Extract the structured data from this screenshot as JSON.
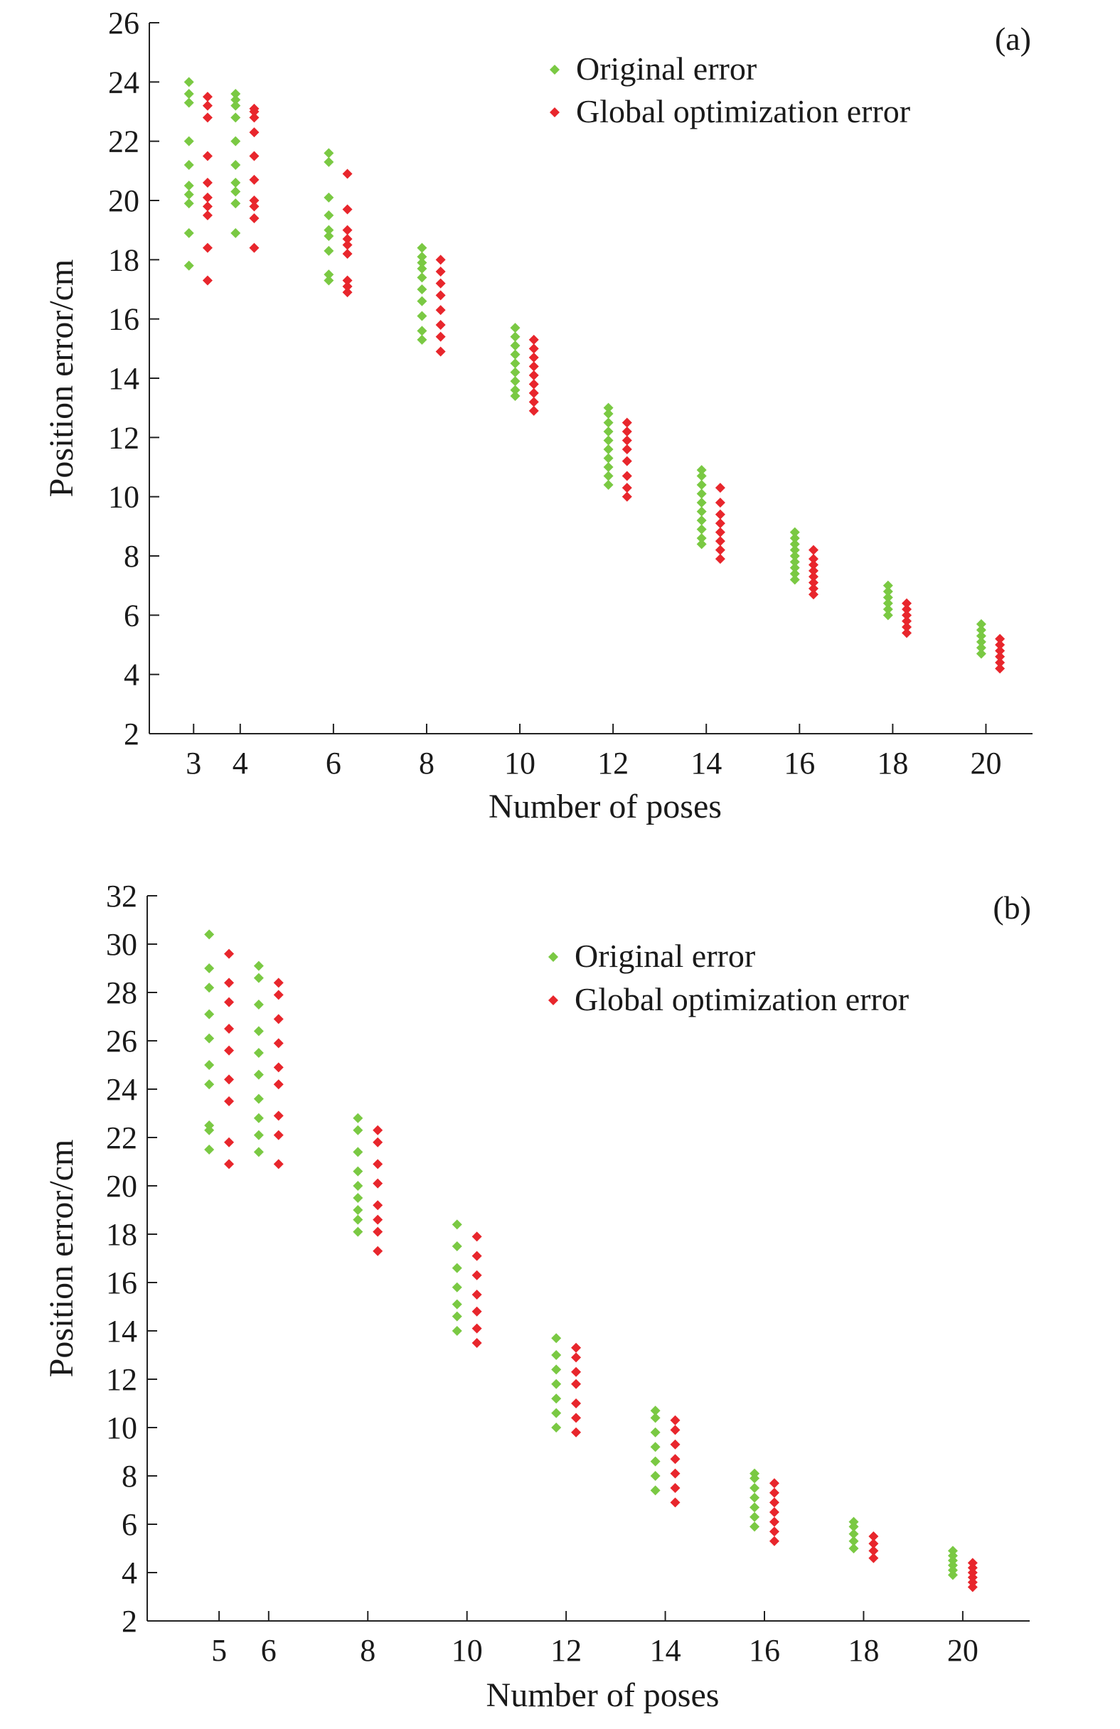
{
  "colors": {
    "original": "#7ac943",
    "optimized": "#e8262c"
  },
  "chart_data": [
    {
      "type": "scatter",
      "panel_label": "(a)",
      "xlabel": "Number of poses",
      "ylabel": "Position error/cm",
      "ylim": [
        2,
        26
      ],
      "yticks": [
        2,
        4,
        6,
        8,
        10,
        12,
        14,
        16,
        18,
        20,
        22,
        24,
        26
      ],
      "xlim": [
        2.05,
        21
      ],
      "xticks": [
        3,
        4,
        6,
        8,
        10,
        12,
        14,
        16,
        18,
        20
      ],
      "legend_position": "top-right",
      "series": [
        {
          "name": "Original error",
          "x": [
            2.9,
            3.9,
            5.9,
            7.9,
            9.9,
            11.9,
            13.9,
            15.9,
            17.9,
            19.9
          ],
          "values": [
            [
              17.8,
              18.9,
              19.9,
              20.2,
              20.5,
              21.2,
              22.0,
              23.3,
              23.6,
              24.0
            ],
            [
              18.9,
              19.9,
              20.3,
              20.6,
              21.2,
              22.0,
              22.8,
              23.2,
              23.4,
              23.6
            ],
            [
              17.3,
              17.5,
              18.3,
              18.8,
              19.0,
              19.5,
              20.1,
              21.3,
              21.6
            ],
            [
              15.3,
              15.6,
              16.1,
              16.6,
              17.0,
              17.4,
              17.7,
              17.9,
              18.1,
              18.4
            ],
            [
              13.4,
              13.6,
              13.9,
              14.2,
              14.5,
              14.8,
              15.1,
              15.4,
              15.7
            ],
            [
              10.4,
              10.7,
              11.0,
              11.3,
              11.6,
              11.9,
              12.2,
              12.5,
              12.8,
              13.0
            ],
            [
              8.4,
              8.6,
              8.9,
              9.2,
              9.5,
              9.8,
              10.1,
              10.4,
              10.7,
              10.9
            ],
            [
              7.2,
              7.4,
              7.6,
              7.8,
              8.0,
              8.2,
              8.4,
              8.6,
              8.8
            ],
            [
              6.0,
              6.2,
              6.4,
              6.6,
              6.8,
              7.0
            ],
            [
              4.7,
              4.9,
              5.1,
              5.3,
              5.5,
              5.7
            ]
          ]
        },
        {
          "name": "Global optimization error",
          "x": [
            3.3,
            4.3,
            6.3,
            8.3,
            10.3,
            12.3,
            14.3,
            16.3,
            18.3,
            20.3
          ],
          "values": [
            [
              17.3,
              18.4,
              19.5,
              19.8,
              20.1,
              20.6,
              21.5,
              22.8,
              23.2,
              23.5
            ],
            [
              18.4,
              19.4,
              19.8,
              20.0,
              20.7,
              21.5,
              22.3,
              22.8,
              23.0,
              23.1
            ],
            [
              16.9,
              17.1,
              17.3,
              18.2,
              18.5,
              18.7,
              19.0,
              19.7,
              20.9
            ],
            [
              14.9,
              15.4,
              15.8,
              16.3,
              16.8,
              17.2,
              17.6,
              18.0
            ],
            [
              12.9,
              13.2,
              13.5,
              13.8,
              14.1,
              14.4,
              14.7,
              15.0,
              15.3
            ],
            [
              10.0,
              10.3,
              10.7,
              11.2,
              11.6,
              11.9,
              12.2,
              12.5
            ],
            [
              7.9,
              8.2,
              8.5,
              8.8,
              9.1,
              9.4,
              9.8,
              10.3
            ],
            [
              6.7,
              6.9,
              7.1,
              7.3,
              7.5,
              7.7,
              7.9,
              8.2
            ],
            [
              5.4,
              5.6,
              5.8,
              6.0,
              6.2,
              6.4
            ],
            [
              4.2,
              4.4,
              4.6,
              4.8,
              5.0,
              5.2
            ]
          ]
        }
      ]
    },
    {
      "type": "scatter",
      "panel_label": "(b)",
      "xlabel": "Number of poses",
      "ylabel": "Position error/cm",
      "ylim": [
        2,
        32
      ],
      "yticks": [
        2,
        4,
        6,
        8,
        10,
        12,
        14,
        16,
        18,
        20,
        22,
        24,
        26,
        28,
        30,
        32
      ],
      "xlim": [
        3.55,
        21.35
      ],
      "xticks": [
        5,
        6,
        8,
        10,
        12,
        14,
        16,
        18,
        20
      ],
      "legend_position": "top-right",
      "series": [
        {
          "name": "Original error",
          "x": [
            4.8,
            5.8,
            7.8,
            9.8,
            11.8,
            13.8,
            15.8,
            17.8,
            19.8
          ],
          "values": [
            [
              21.5,
              22.3,
              22.5,
              24.2,
              25.0,
              26.1,
              27.1,
              28.2,
              29.0,
              30.4
            ],
            [
              21.4,
              22.1,
              22.8,
              23.6,
              24.6,
              25.5,
              26.4,
              27.5,
              28.6,
              29.1
            ],
            [
              18.1,
              18.6,
              19.0,
              19.5,
              20.0,
              20.6,
              21.4,
              22.3,
              22.8
            ],
            [
              14.0,
              14.6,
              15.1,
              15.8,
              16.6,
              17.5,
              18.4
            ],
            [
              10.0,
              10.6,
              11.2,
              11.8,
              12.4,
              13.0,
              13.7
            ],
            [
              7.4,
              8.0,
              8.6,
              9.2,
              9.8,
              10.4,
              10.7
            ],
            [
              5.9,
              6.3,
              6.7,
              7.1,
              7.5,
              7.9,
              8.1
            ],
            [
              5.0,
              5.3,
              5.6,
              5.9,
              6.1
            ],
            [
              3.9,
              4.1,
              4.3,
              4.5,
              4.7,
              4.9
            ]
          ]
        },
        {
          "name": "Global optimization error",
          "x": [
            5.2,
            6.2,
            8.2,
            10.2,
            12.2,
            14.2,
            16.2,
            18.2,
            20.2
          ],
          "values": [
            [
              20.9,
              21.8,
              23.5,
              24.4,
              25.6,
              26.5,
              27.6,
              28.4,
              29.6
            ],
            [
              20.9,
              22.1,
              22.9,
              24.2,
              24.9,
              25.9,
              26.9,
              27.9,
              28.4
            ],
            [
              17.3,
              18.1,
              18.6,
              19.2,
              20.1,
              20.9,
              21.8,
              22.3
            ],
            [
              13.5,
              14.1,
              14.8,
              15.5,
              16.3,
              17.1,
              17.9
            ],
            [
              9.8,
              10.4,
              11.0,
              11.8,
              12.3,
              12.9,
              13.3
            ],
            [
              6.9,
              7.5,
              8.1,
              8.7,
              9.3,
              9.9,
              10.3
            ],
            [
              5.3,
              5.7,
              6.1,
              6.5,
              6.9,
              7.3,
              7.7
            ],
            [
              4.6,
              4.9,
              5.2,
              5.5
            ],
            [
              3.4,
              3.6,
              3.8,
              4.0,
              4.2,
              4.4
            ]
          ]
        }
      ]
    }
  ]
}
